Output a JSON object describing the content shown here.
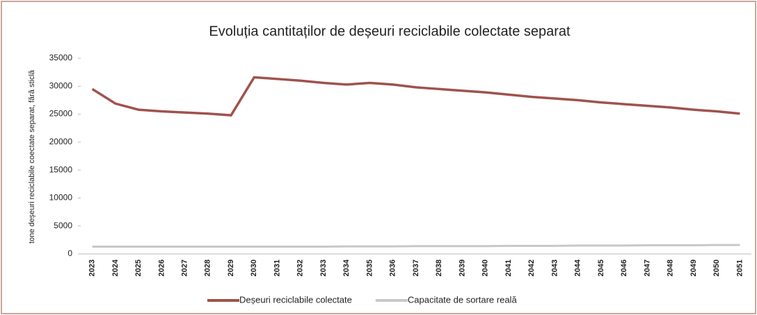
{
  "chart_data": {
    "type": "line",
    "title": "Evoluția cantitaților de deșeuri reciclabile colectate separat",
    "y_label": "tone deșeuri reciclabile coectate separat, fără sticlă",
    "categories": [
      "2023",
      "2024",
      "2025",
      "2026",
      "2027",
      "2028",
      "2029",
      "2030",
      "2031",
      "2032",
      "2033",
      "2034",
      "2035",
      "2036",
      "2037",
      "2038",
      "2039",
      "2040",
      "2041",
      "2042",
      "2043",
      "2044",
      "2045",
      "2046",
      "2047",
      "2048",
      "2049",
      "2050",
      "2051"
    ],
    "series": [
      {
        "name": "Deșeuri reciclabile colectate",
        "color": "#a0524d",
        "values": [
          29500,
          26900,
          25800,
          25500,
          25300,
          25100,
          24800,
          31600,
          31300,
          31000,
          30600,
          30300,
          30600,
          30300,
          29800,
          29500,
          29200,
          28900,
          28500,
          28100,
          27800,
          27500,
          27100,
          26800,
          26500,
          26200,
          25800,
          25500,
          25100
        ]
      },
      {
        "name": "Capacitate  de sortare reală",
        "color": "#c8c8c8",
        "values": [
          1300,
          1300,
          1300,
          1300,
          1300,
          1300,
          1300,
          1300,
          1300,
          1300,
          1300,
          1350,
          1350,
          1350,
          1400,
          1400,
          1400,
          1400,
          1450,
          1450,
          1450,
          1500,
          1500,
          1500,
          1550,
          1550,
          1550,
          1600,
          1600
        ]
      }
    ],
    "ylim": [
      0,
      35000
    ],
    "yticks": [
      0,
      5000,
      10000,
      15000,
      20000,
      25000,
      30000,
      35000
    ],
    "legend": "bottom"
  }
}
